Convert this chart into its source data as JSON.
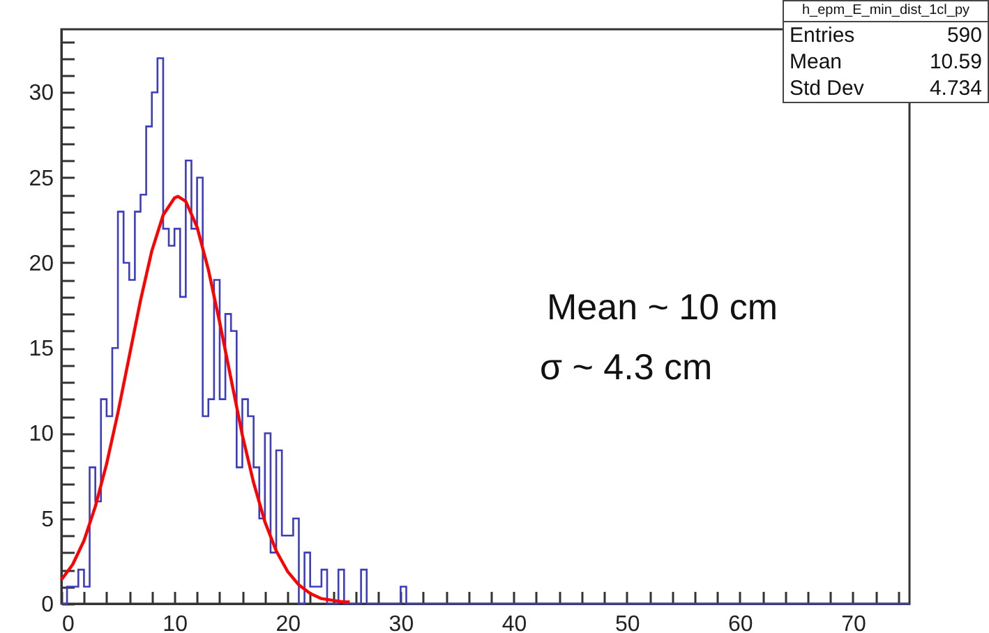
{
  "chart_data": {
    "type": "histogram",
    "bins": [
      0,
      0.5,
      1,
      1.5,
      2,
      2.5,
      3,
      3.5,
      4,
      4.5,
      5,
      5.5,
      6,
      6.5,
      7,
      7.5,
      8,
      8.5,
      9,
      9.5,
      10,
      10.5,
      11,
      11.5,
      12,
      12.5,
      13,
      13.5,
      14,
      14.5,
      15,
      15.5,
      16,
      16.5,
      17,
      17.5,
      18,
      18.5,
      19,
      19.5,
      20,
      20.5,
      21,
      21.5,
      22,
      22.5,
      23,
      23.5,
      24,
      24.5,
      25,
      25.5,
      26,
      26.5,
      27,
      27.5,
      28,
      28.5,
      29,
      29.5,
      30,
      30.5,
      31,
      31.5,
      32,
      32.5,
      33,
      33.5,
      34,
      34.5,
      35,
      35.5,
      36,
      36.5,
      37,
      37.5,
      38,
      38.5,
      39,
      39.5,
      40,
      40.5,
      41,
      41.5,
      42,
      42.5,
      43,
      43.5,
      44,
      44.5,
      45,
      45.5,
      46,
      46.5,
      47,
      47.5,
      48,
      48.5,
      49,
      49.5,
      50,
      50.5,
      51,
      51.5,
      52,
      52.5,
      53,
      53.5,
      54,
      54.5,
      55,
      55.5,
      56,
      56.5,
      57,
      57.5,
      58,
      58.5,
      59,
      59.5,
      60,
      60.5,
      61,
      61.5,
      62,
      62.5,
      63,
      63.5,
      64,
      64.5,
      65,
      65.5,
      66,
      66.5,
      67,
      67.5,
      68,
      68.5,
      69,
      69.5,
      70,
      70.5,
      71,
      71.5,
      72,
      72.5,
      73,
      73.5,
      74,
      74.5,
      75
    ],
    "series": [
      {
        "color": "#3c3cc0",
        "values": [
          0,
          1,
          1,
          2,
          1,
          8,
          6,
          12,
          11,
          15,
          23,
          20,
          19,
          23,
          24,
          28,
          30,
          32,
          22,
          21,
          22,
          18,
          26,
          22,
          25,
          11,
          12,
          19,
          12,
          17,
          16,
          8,
          12,
          11,
          8,
          5,
          10,
          3,
          9,
          4,
          4,
          5,
          0,
          3,
          1,
          1,
          2,
          0,
          0,
          2,
          0,
          0,
          0,
          2,
          0,
          0,
          0,
          0,
          0,
          0,
          1,
          0,
          0,
          0,
          0,
          0,
          0,
          0,
          0,
          0,
          0,
          0,
          0,
          0,
          0,
          0,
          0,
          0,
          0,
          0,
          0,
          0,
          0,
          0,
          0,
          0,
          0,
          0,
          0,
          0,
          0,
          0,
          0,
          0,
          0,
          0,
          0,
          0,
          0,
          0,
          0,
          0,
          0,
          0,
          0,
          0,
          0,
          0,
          0,
          0,
          0,
          0,
          0,
          0,
          0,
          0,
          0,
          0,
          0,
          0,
          0,
          0,
          0,
          0,
          0,
          0,
          0,
          0,
          0,
          0,
          0,
          0,
          0,
          0,
          0,
          0,
          0,
          0,
          0,
          0,
          0,
          0,
          0,
          0,
          0,
          0,
          0,
          0,
          0,
          0
        ]
      },
      {
        "type": "line",
        "color": "#ff0000",
        "x": [
          0,
          1,
          2,
          3,
          4,
          5,
          6,
          7,
          8,
          9,
          10,
          10.3,
          11,
          12,
          13,
          14,
          15,
          16,
          17,
          18,
          19,
          20,
          21,
          22,
          23,
          24,
          25,
          25.5
        ],
        "values": [
          1.4,
          2.3,
          3.7,
          5.7,
          8.2,
          11.2,
          14.5,
          17.8,
          20.7,
          22.8,
          23.8,
          23.9,
          23.6,
          22.1,
          19.6,
          16.5,
          13.2,
          9.9,
          7.1,
          4.8,
          3.1,
          1.9,
          1.1,
          0.6,
          0.3,
          0.2,
          0.1,
          0.1
        ]
      }
    ],
    "xlim": [
      0,
      75
    ],
    "xticks": [
      0,
      {
        "value": 2,
        "label": null
      },
      {
        "value": 4,
        "label": null
      },
      {
        "value": 6,
        "label": null
      },
      {
        "value": 8,
        "label": null
      },
      10,
      {
        "value": 12,
        "label": null
      },
      {
        "value": 14,
        "label": null
      },
      {
        "value": 16,
        "label": null
      },
      {
        "value": 18,
        "label": null
      },
      20,
      {
        "value": 22,
        "label": null
      },
      {
        "value": 24,
        "label": null
      },
      {
        "value": 26,
        "label": null
      },
      {
        "value": 28,
        "label": null
      },
      30,
      {
        "value": 32,
        "label": null
      },
      {
        "value": 34,
        "label": null
      },
      {
        "value": 36,
        "label": null
      },
      {
        "value": 38,
        "label": null
      },
      40,
      {
        "value": 42,
        "label": null
      },
      {
        "value": 44,
        "label": null
      },
      {
        "value": 46,
        "label": null
      },
      {
        "value": 48,
        "label": null
      },
      50,
      {
        "value": 52,
        "label": null
      },
      {
        "value": 54,
        "label": null
      },
      {
        "value": 56,
        "label": null
      },
      {
        "value": 58,
        "label": null
      },
      60,
      {
        "value": 62,
        "label": null
      },
      {
        "value": 64,
        "label": null
      },
      {
        "value": 66,
        "label": null
      },
      {
        "value": 68,
        "label": null
      },
      70,
      {
        "value": 72,
        "label": null
      },
      {
        "value": 74,
        "label": null
      }
    ],
    "ylim": [
      0,
      33.7
    ],
    "yticks": [
      0,
      {
        "value": 1,
        "label": null
      },
      {
        "value": 2,
        "label": null
      },
      {
        "value": 3,
        "label": null
      },
      {
        "value": 4,
        "label": null
      },
      5,
      {
        "value": 6,
        "label": null
      },
      {
        "value": 7,
        "label": null
      },
      {
        "value": 8,
        "label": null
      },
      {
        "value": 9,
        "label": null
      },
      10,
      {
        "value": 11,
        "label": null
      },
      {
        "value": 12,
        "label": null
      },
      {
        "value": 13,
        "label": null
      },
      {
        "value": 14,
        "label": null
      },
      15,
      {
        "value": 16,
        "label": null
      },
      {
        "value": 17,
        "label": null
      },
      {
        "value": 18,
        "label": null
      },
      {
        "value": 19,
        "label": null
      },
      20,
      {
        "value": 21,
        "label": null
      },
      {
        "value": 22,
        "label": null
      },
      {
        "value": 23,
        "label": null
      },
      {
        "value": 24,
        "label": null
      },
      25,
      {
        "value": 26,
        "label": null
      },
      {
        "value": 27,
        "label": null
      },
      {
        "value": 28,
        "label": null
      },
      {
        "value": 29,
        "label": null
      },
      30,
      {
        "value": 31,
        "label": null
      },
      {
        "value": 32,
        "label": null
      },
      {
        "value": 33,
        "label": null
      }
    ],
    "annotations": [
      "h_epm_E_min_dist_1cl_py",
      "Entries",
      "590",
      "Mean",
      "10.59",
      "Std Dev",
      "4.734",
      "Mean ~ 10 cm",
      "σ ~ 4.3 cm"
    ]
  }
}
